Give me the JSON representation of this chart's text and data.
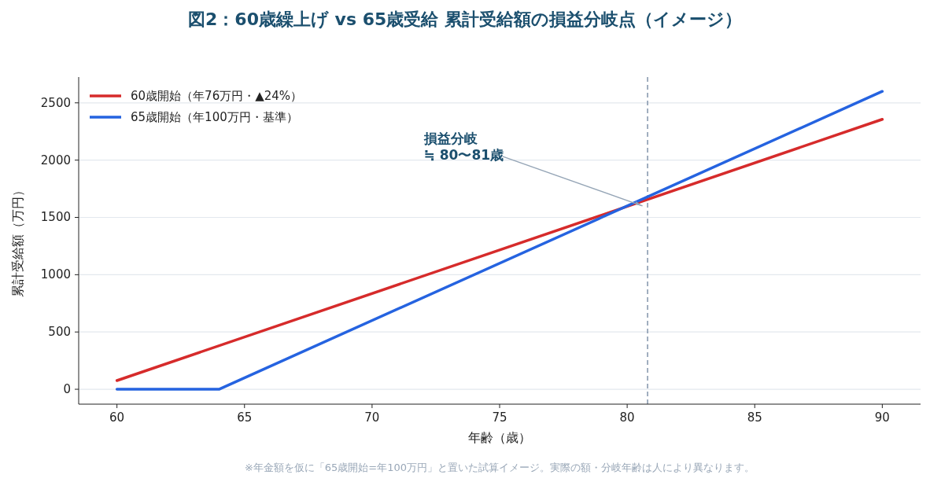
{
  "chart_data": {
    "type": "line",
    "title": "図2：60歳繰上げ vs 65歳受給 累計受給額の損益分岐点（イメージ）",
    "xlabel": "年齢（歳）",
    "ylabel": "累計受給額（万円）",
    "series": [
      {
        "name": "60歳開始（年76万円・▲24%）",
        "color": "#d62b2b",
        "x": [
          60,
          90
        ],
        "values": [
          76,
          2356
        ]
      },
      {
        "name": "65歳開始（年100万円・基準）",
        "color": "#2563e0",
        "x": [
          60,
          64,
          90
        ],
        "values": [
          0,
          0,
          2600
        ]
      }
    ],
    "xlim": [
      58.5,
      91.5
    ],
    "xticks": [
      60,
      65,
      70,
      75,
      80,
      85,
      90
    ],
    "ylim": [
      -130,
      2725
    ],
    "yticks": [
      0,
      500,
      1000,
      1500,
      2000,
      2500
    ],
    "grid": "y",
    "legend": "top left",
    "marker": "none",
    "line_style": "solid",
    "ref_lines": [
      {
        "axis": "x",
        "value": 80.8,
        "color": "#8a9bb0",
        "line_style": "dashed"
      }
    ],
    "annotations": [
      {
        "text": "損益分岐\n≒ 80〜81歳",
        "x": 80.6,
        "y": 1600
      },
      "※年金額を仮に「65歳開始=年100万円」と置いた試算イメージ。実際の額・分岐年齢は人により異なります。"
    ]
  }
}
